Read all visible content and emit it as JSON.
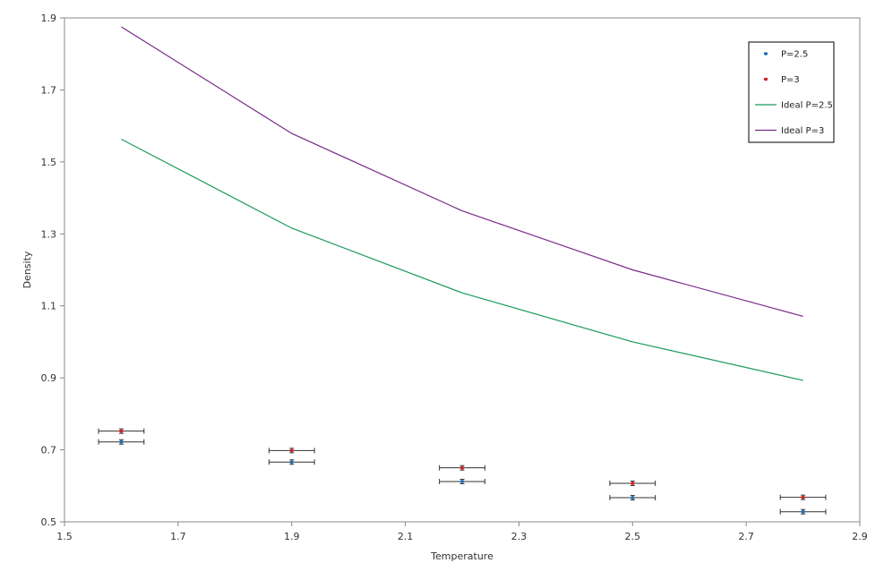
{
  "chart_data": {
    "type": "scatter",
    "title": "",
    "xlabel": "Temperature",
    "ylabel": "Density",
    "xlim": [
      1.5,
      2.9
    ],
    "ylim": [
      0.5,
      1.9
    ],
    "xticks": [
      1.5,
      1.7,
      1.9,
      2.1,
      2.3,
      2.5,
      2.7,
      2.9
    ],
    "yticks": [
      0.5,
      0.7,
      0.9,
      1.1,
      1.3,
      1.5,
      1.7,
      1.9
    ],
    "grid": false,
    "legend_position": "top-right",
    "x_error": 0.04,
    "series": [
      {
        "name": "P=2.5",
        "kind": "points",
        "color": "#1f6fb4",
        "x": [
          1.6,
          1.9,
          2.2,
          2.5,
          2.8
        ],
        "y": [
          0.722,
          0.666,
          0.612,
          0.567,
          0.528
        ],
        "yerr": [
          0.004,
          0.005,
          0.004,
          0.004,
          0.004
        ]
      },
      {
        "name": "P=3",
        "kind": "points",
        "color": "#d62020",
        "x": [
          1.6,
          1.9,
          2.2,
          2.5,
          2.8
        ],
        "y": [
          0.752,
          0.698,
          0.65,
          0.607,
          0.568
        ],
        "yerr": [
          0.004,
          0.004,
          0.004,
          0.005,
          0.004
        ]
      },
      {
        "name": "Ideal P=2.5",
        "kind": "line",
        "color": "#1a9a5a",
        "x": [
          1.6,
          1.9,
          2.2,
          2.5,
          2.8
        ],
        "y": [
          1.563,
          1.316,
          1.136,
          1.0,
          0.893
        ]
      },
      {
        "name": "Ideal P=3",
        "kind": "line",
        "color": "#7a2a8a",
        "x": [
          1.6,
          1.9,
          2.2,
          2.5,
          2.8
        ],
        "y": [
          1.875,
          1.579,
          1.364,
          1.2,
          1.071
        ]
      }
    ]
  }
}
